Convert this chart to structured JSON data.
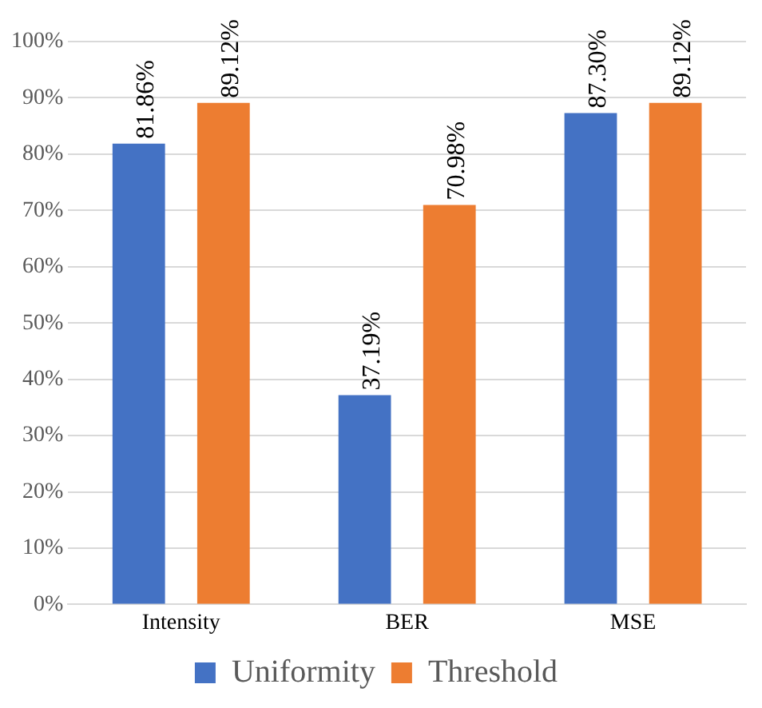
{
  "chart_data": {
    "type": "bar",
    "categories": [
      "Intensity",
      "BER",
      "MSE"
    ],
    "series": [
      {
        "name": "Uniformity",
        "color": "#4472c4",
        "values": [
          81.86,
          37.19,
          87.3
        ],
        "value_labels": [
          "81.86%",
          "37.19%",
          "87.30%"
        ]
      },
      {
        "name": "Threshold",
        "color": "#ed7d31",
        "values": [
          89.12,
          70.98,
          89.12
        ],
        "value_labels": [
          "89.12%",
          "70.98%",
          "89.12%"
        ]
      }
    ],
    "ylim": [
      0,
      100
    ],
    "yticks": [
      {
        "value": 0,
        "label": "0%"
      },
      {
        "value": 10,
        "label": "10%"
      },
      {
        "value": 20,
        "label": "20%"
      },
      {
        "value": 30,
        "label": "30%"
      },
      {
        "value": 40,
        "label": "40%"
      },
      {
        "value": 50,
        "label": "50%"
      },
      {
        "value": 60,
        "label": "60%"
      },
      {
        "value": 70,
        "label": "70%"
      },
      {
        "value": 80,
        "label": "80%"
      },
      {
        "value": 90,
        "label": "90%"
      },
      {
        "value": 100,
        "label": "100%"
      }
    ],
    "grid": "y",
    "legend": "bottom"
  }
}
